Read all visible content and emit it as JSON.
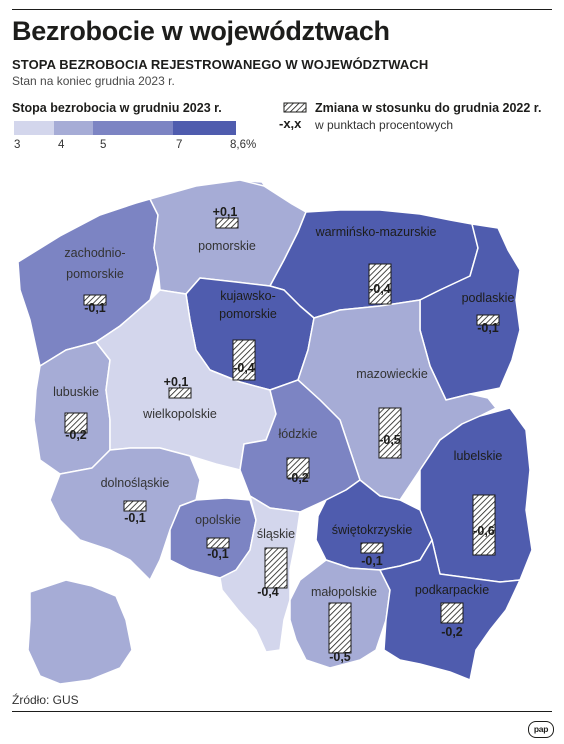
{
  "title": "Bezrobocie w województwach",
  "subtitle": "STOPA BEZROBOCIA REJESTROWANEGO W WOJEWÓDZTWACH",
  "date_note": "Stan na koniec grudnia 2023 r.",
  "legend": {
    "scale_title": "Stopa bezrobocia w grudniu 2023 r.",
    "ticks": [
      "3",
      "4",
      "5",
      "7",
      "8,6%"
    ],
    "tick_values": [
      3,
      4,
      5,
      7,
      8.6
    ],
    "colors": [
      "#d3d6ec",
      "#a6acd6",
      "#7c84c3",
      "#4f5cae"
    ],
    "change_title": "Zmiana w stosunku do grudnia 2022 r.",
    "change_sample": "-x,x",
    "change_unit": "w punktach procentowych"
  },
  "regions": [
    {
      "name": "zachodnio-pomorskie",
      "change": -0.1,
      "change_label": "-0,1",
      "color": "#7c84c3"
    },
    {
      "name": "pomorskie",
      "change": 0.1,
      "change_label": "+0,1",
      "color": "#a6acd6"
    },
    {
      "name": "warmińsko-mazurskie",
      "change": -0.4,
      "change_label": "-0,4",
      "color": "#4f5cae"
    },
    {
      "name": "podlaskie",
      "change": -0.1,
      "change_label": "-0,1",
      "color": "#4f5cae"
    },
    {
      "name": "kujawsko-pomorskie",
      "change": -0.4,
      "change_label": "-0,4",
      "color": "#4f5cae"
    },
    {
      "name": "lubuskie",
      "change": -0.2,
      "change_label": "-0,2",
      "color": "#a6acd6"
    },
    {
      "name": "wielkopolskie",
      "change": 0.1,
      "change_label": "+0,1",
      "color": "#d3d6ec"
    },
    {
      "name": "mazowieckie",
      "change": -0.5,
      "change_label": "-0,5",
      "color": "#a6acd6"
    },
    {
      "name": "łódzkie",
      "change": -0.2,
      "change_label": "-0,2",
      "color": "#7c84c3"
    },
    {
      "name": "lubelskie",
      "change": -0.6,
      "change_label": "-0,6",
      "color": "#4f5cae"
    },
    {
      "name": "dolnośląskie",
      "change": -0.1,
      "change_label": "-0,1",
      "color": "#a6acd6"
    },
    {
      "name": "opolskie",
      "change": -0.1,
      "change_label": "-0,1",
      "color": "#7c84c3"
    },
    {
      "name": "śląskie",
      "change": -0.4,
      "change_label": "-0,4",
      "color": "#d3d6ec"
    },
    {
      "name": "świętokrzyskie",
      "change": -0.1,
      "change_label": "-0,1",
      "color": "#4f5cae"
    },
    {
      "name": "małopolskie",
      "change": -0.5,
      "change_label": "-0,5",
      "color": "#a6acd6"
    },
    {
      "name": "podkarpackie",
      "change": -0.2,
      "change_label": "-0,2",
      "color": "#4f5cae"
    }
  ],
  "source": "Źródło: GUS",
  "logo_text": "pap"
}
